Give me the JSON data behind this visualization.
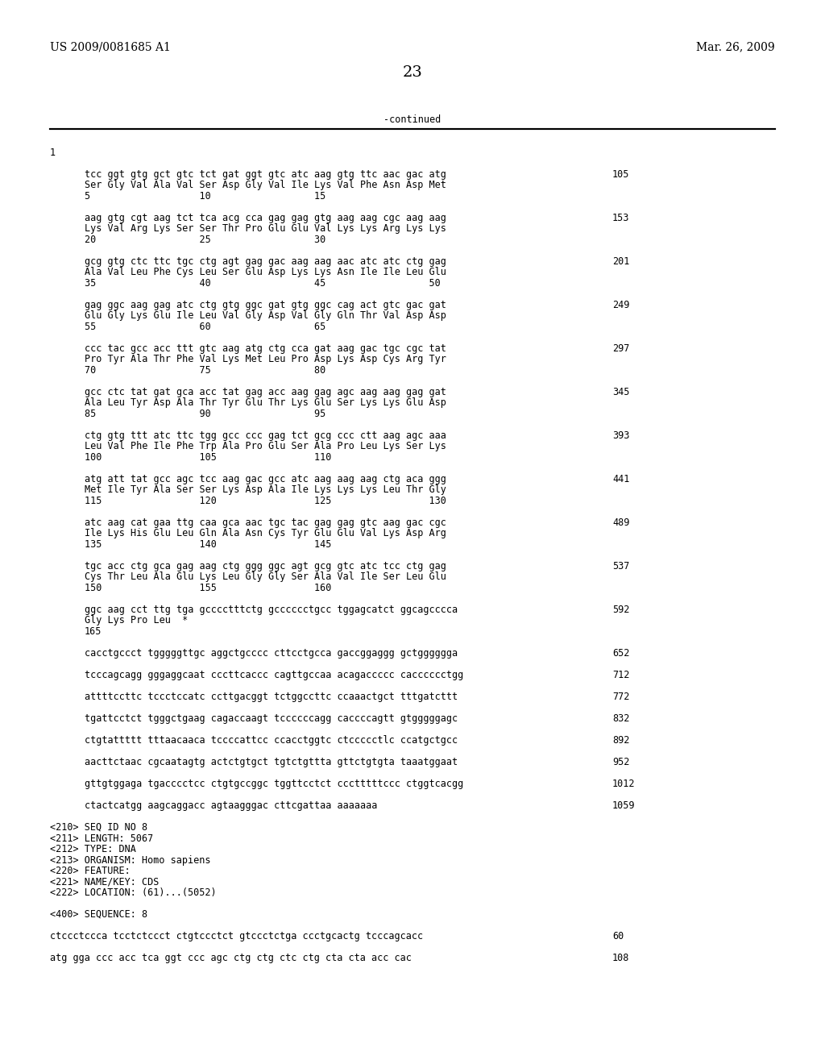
{
  "header_left": "US 2009/0081685 A1",
  "header_right": "Mar. 26, 2009",
  "page_number": "23",
  "continued_label": "-continued",
  "background_color": "#ffffff",
  "text_color": "#000000",
  "content_lines": [
    {
      "text": "1",
      "num": null,
      "indent": false
    },
    {
      "text": "",
      "num": null,
      "indent": false
    },
    {
      "text": "tcc ggt gtg gct gtc tct gat ggt gtc atc aag gtg ttc aac gac atg",
      "num": "105",
      "indent": true
    },
    {
      "text": "Ser Gly Val Ala Val Ser Asp Gly Val Ile Lys Val Phe Asn Asp Met",
      "num": null,
      "indent": true
    },
    {
      "text": "5                   10                  15",
      "num": null,
      "indent": true
    },
    {
      "text": "",
      "num": null,
      "indent": false
    },
    {
      "text": "aag gtg cgt aag tct tca acg cca gag gag gtg aag aag cgc aag aag",
      "num": "153",
      "indent": true
    },
    {
      "text": "Lys Val Arg Lys Ser Ser Thr Pro Glu Glu Val Lys Lys Arg Lys Lys",
      "num": null,
      "indent": true
    },
    {
      "text": "20                  25                  30",
      "num": null,
      "indent": true
    },
    {
      "text": "",
      "num": null,
      "indent": false
    },
    {
      "text": "gcg gtg ctc ttc tgc ctg agt gag gac aag aag aac atc atc ctg gag",
      "num": "201",
      "indent": true
    },
    {
      "text": "Ala Val Leu Phe Cys Leu Ser Glu Asp Lys Lys Asn Ile Ile Leu Glu",
      "num": null,
      "indent": true
    },
    {
      "text": "35                  40                  45                  50",
      "num": null,
      "indent": true
    },
    {
      "text": "",
      "num": null,
      "indent": false
    },
    {
      "text": "gag ggc aag gag atc ctg gtg ggc gat gtg ggc cag act gtc gac gat",
      "num": "249",
      "indent": true
    },
    {
      "text": "Glu Gly Lys Glu Ile Leu Val Gly Asp Val Gly Gln Thr Val Asp Asp",
      "num": null,
      "indent": true
    },
    {
      "text": "55                  60                  65",
      "num": null,
      "indent": true
    },
    {
      "text": "",
      "num": null,
      "indent": false
    },
    {
      "text": "ccc tac gcc acc ttt gtc aag atg ctg cca gat aag gac tgc cgc tat",
      "num": "297",
      "indent": true
    },
    {
      "text": "Pro Tyr Ala Thr Phe Val Lys Met Leu Pro Asp Lys Asp Cys Arg Tyr",
      "num": null,
      "indent": true
    },
    {
      "text": "70                  75                  80",
      "num": null,
      "indent": true
    },
    {
      "text": "",
      "num": null,
      "indent": false
    },
    {
      "text": "gcc ctc tat gat gca acc tat gag acc aag gag agc aag aag gag gat",
      "num": "345",
      "indent": true
    },
    {
      "text": "Ala Leu Tyr Asp Ala Thr Tyr Glu Thr Lys Glu Ser Lys Lys Glu Asp",
      "num": null,
      "indent": true
    },
    {
      "text": "85                  90                  95",
      "num": null,
      "indent": true
    },
    {
      "text": "",
      "num": null,
      "indent": false
    },
    {
      "text": "ctg gtg ttt atc ttc tgg gcc ccc gag tct gcg ccc ctt aag agc aaa",
      "num": "393",
      "indent": true
    },
    {
      "text": "Leu Val Phe Ile Phe Trp Ala Pro Glu Ser Ala Pro Leu Lys Ser Lys",
      "num": null,
      "indent": true
    },
    {
      "text": "100                 105                 110",
      "num": null,
      "indent": true
    },
    {
      "text": "",
      "num": null,
      "indent": false
    },
    {
      "text": "atg att tat gcc agc tcc aag gac gcc atc aag aag aag ctg aca ggg",
      "num": "441",
      "indent": true
    },
    {
      "text": "Met Ile Tyr Ala Ser Ser Lys Asp Ala Ile Lys Lys Lys Leu Thr Gly",
      "num": null,
      "indent": true
    },
    {
      "text": "115                 120                 125                 130",
      "num": null,
      "indent": true
    },
    {
      "text": "",
      "num": null,
      "indent": false
    },
    {
      "text": "atc aag cat gaa ttg caa gca aac tgc tac gag gag gtc aag gac cgc",
      "num": "489",
      "indent": true
    },
    {
      "text": "Ile Lys His Glu Leu Gln Ala Asn Cys Tyr Glu Glu Val Lys Asp Arg",
      "num": null,
      "indent": true
    },
    {
      "text": "135                 140                 145",
      "num": null,
      "indent": true
    },
    {
      "text": "",
      "num": null,
      "indent": false
    },
    {
      "text": "tgc acc ctg gca gag aag ctg ggg ggc agt gcg gtc atc tcc ctg gag",
      "num": "537",
      "indent": true
    },
    {
      "text": "Cys Thr Leu Ala Glu Lys Leu Gly Gly Ser Ala Val Ile Ser Leu Glu",
      "num": null,
      "indent": true
    },
    {
      "text": "150                 155                 160",
      "num": null,
      "indent": true
    },
    {
      "text": "",
      "num": null,
      "indent": false
    },
    {
      "text": "ggc aag cct ttg tga gcccctttctg gcccccctgcc tggagcatct ggcagcccca",
      "num": "592",
      "indent": true
    },
    {
      "text": "Gly Lys Pro Leu  *",
      "num": null,
      "indent": true
    },
    {
      "text": "165",
      "num": null,
      "indent": true
    },
    {
      "text": "",
      "num": null,
      "indent": false
    },
    {
      "text": "cacctgccct tgggggttgc aggctgcccc cttcctgcca gaccggaggg gctgggggga",
      "num": "652",
      "indent": true
    },
    {
      "text": "",
      "num": null,
      "indent": false
    },
    {
      "text": "tcccagcagg gggaggcaat cccttcaccc cagttgccaa acagaccccc cacccccctgg",
      "num": "712",
      "indent": true
    },
    {
      "text": "",
      "num": null,
      "indent": false
    },
    {
      "text": "attttccttc tccctccatc ccttgacggt tctggccttc ccaaactgct tttgatcttt",
      "num": "772",
      "indent": true
    },
    {
      "text": "",
      "num": null,
      "indent": false
    },
    {
      "text": "tgattcctct tgggctgaag cagaccaagt tccccccagg caccccagtt gtgggggagc",
      "num": "832",
      "indent": true
    },
    {
      "text": "",
      "num": null,
      "indent": false
    },
    {
      "text": "ctgtattttt tttaacaaca tccccattcc ccacctggtc ctccccctlc ccatgctgcc",
      "num": "892",
      "indent": true
    },
    {
      "text": "",
      "num": null,
      "indent": false
    },
    {
      "text": "aacttctaac cgcaatagtg actctgtgct tgtctgttta gttctgtgta taaatggaat",
      "num": "952",
      "indent": true
    },
    {
      "text": "",
      "num": null,
      "indent": false
    },
    {
      "text": "gttgtggaga tgacccctcc ctgtgccggc tggttcctct ccctttttccc ctggtcacgg",
      "num": "1012",
      "indent": true
    },
    {
      "text": "",
      "num": null,
      "indent": false
    },
    {
      "text": "ctactcatgg aagcaggacc agtaagggac cttcgattaa aaaaaaa",
      "num": "1059",
      "indent": true
    },
    {
      "text": "",
      "num": null,
      "indent": false
    },
    {
      "text": "<210> SEQ ID NO 8",
      "num": null,
      "indent": false
    },
    {
      "text": "<211> LENGTH: 5067",
      "num": null,
      "indent": false
    },
    {
      "text": "<212> TYPE: DNA",
      "num": null,
      "indent": false
    },
    {
      "text": "<213> ORGANISM: Homo sapiens",
      "num": null,
      "indent": false
    },
    {
      "text": "<220> FEATURE:",
      "num": null,
      "indent": false
    },
    {
      "text": "<221> NAME/KEY: CDS",
      "num": null,
      "indent": false
    },
    {
      "text": "<222> LOCATION: (61)...(5052)",
      "num": null,
      "indent": false
    },
    {
      "text": "",
      "num": null,
      "indent": false
    },
    {
      "text": "<400> SEQUENCE: 8",
      "num": null,
      "indent": false
    },
    {
      "text": "",
      "num": null,
      "indent": false
    },
    {
      "text": "ctccctccca tcctctccct ctgtccctct gtccctctga ccctgcactg tcccagcacc",
      "num": "60",
      "indent": false
    },
    {
      "text": "",
      "num": null,
      "indent": false
    },
    {
      "text": "atg gga ccc acc tca ggt ccc agc ctg ctg ctc ctg cta cta acc cac",
      "num": "108",
      "indent": false
    }
  ]
}
